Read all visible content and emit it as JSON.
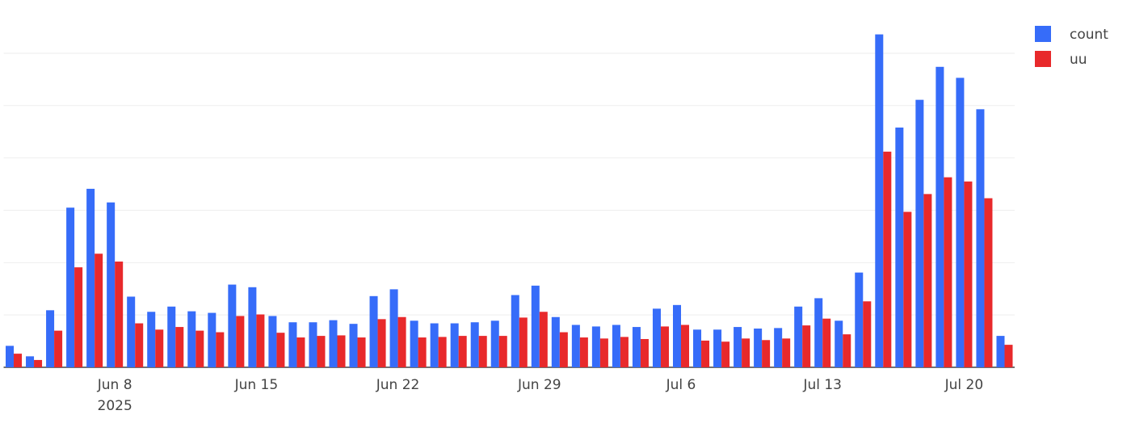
{
  "chart_data": {
    "type": "bar",
    "x": [
      "2025-06-03",
      "2025-06-04",
      "2025-06-05",
      "2025-06-06",
      "2025-06-07",
      "2025-06-08",
      "2025-06-09",
      "2025-06-10",
      "2025-06-11",
      "2025-06-12",
      "2025-06-13",
      "2025-06-14",
      "2025-06-15",
      "2025-06-16",
      "2025-06-17",
      "2025-06-18",
      "2025-06-19",
      "2025-06-20",
      "2025-06-21",
      "2025-06-22",
      "2025-06-23",
      "2025-06-24",
      "2025-06-25",
      "2025-06-26",
      "2025-06-27",
      "2025-06-28",
      "2025-06-29",
      "2025-06-30",
      "2025-07-01",
      "2025-07-02",
      "2025-07-03",
      "2025-07-04",
      "2025-07-05",
      "2025-07-06",
      "2025-07-07",
      "2025-07-08",
      "2025-07-09",
      "2025-07-10",
      "2025-07-11",
      "2025-07-12",
      "2025-07-13",
      "2025-07-14",
      "2025-07-15",
      "2025-07-16",
      "2025-07-17",
      "2025-07-18",
      "2025-07-19",
      "2025-07-20",
      "2025-07-21",
      "2025-07-22"
    ],
    "series": [
      {
        "name": "count",
        "color": "#366cf9",
        "values": [
          0.41,
          0.21,
          1.09,
          3.05,
          3.41,
          3.15,
          1.35,
          1.06,
          1.16,
          1.07,
          1.04,
          1.58,
          1.53,
          0.98,
          0.86,
          0.86,
          0.9,
          0.83,
          1.36,
          1.49,
          0.89,
          0.84,
          0.84,
          0.86,
          0.89,
          1.38,
          1.56,
          0.96,
          0.81,
          0.78,
          0.81,
          0.77,
          1.12,
          1.19,
          0.72,
          0.72,
          0.77,
          0.74,
          0.75,
          1.16,
          1.32,
          0.89,
          1.81,
          6.36,
          4.58,
          5.11,
          5.74,
          5.53,
          4.93,
          0.6
        ]
      },
      {
        "name": "uu",
        "color": "#e8292b",
        "values": [
          0.26,
          0.14,
          0.7,
          1.91,
          2.17,
          2.02,
          0.84,
          0.72,
          0.77,
          0.7,
          0.67,
          0.98,
          1.01,
          0.66,
          0.57,
          0.6,
          0.61,
          0.57,
          0.92,
          0.96,
          0.57,
          0.58,
          0.6,
          0.6,
          0.6,
          0.95,
          1.06,
          0.67,
          0.57,
          0.55,
          0.58,
          0.54,
          0.78,
          0.81,
          0.51,
          0.49,
          0.55,
          0.52,
          0.55,
          0.8,
          0.93,
          0.63,
          1.26,
          4.12,
          2.97,
          3.31,
          3.63,
          3.55,
          3.23,
          0.43
        ]
      }
    ],
    "xticks": [
      {
        "value": "2025-06-08",
        "label": "Jun 8"
      },
      {
        "value": "2025-06-15",
        "label": "Jun 15"
      },
      {
        "value": "2025-06-22",
        "label": "Jun 22"
      },
      {
        "value": "2025-06-29",
        "label": "Jun 29"
      },
      {
        "value": "2025-07-06",
        "label": "Jul 6"
      },
      {
        "value": "2025-07-13",
        "label": "Jul 13"
      },
      {
        "value": "2025-07-20",
        "label": "Jul 20"
      }
    ],
    "xtick_year": "2025",
    "ylim": [
      0,
      6.4
    ],
    "yticks": [
      0,
      1,
      2,
      3,
      4,
      5,
      6
    ],
    "grid": true,
    "legend": "top-right"
  }
}
